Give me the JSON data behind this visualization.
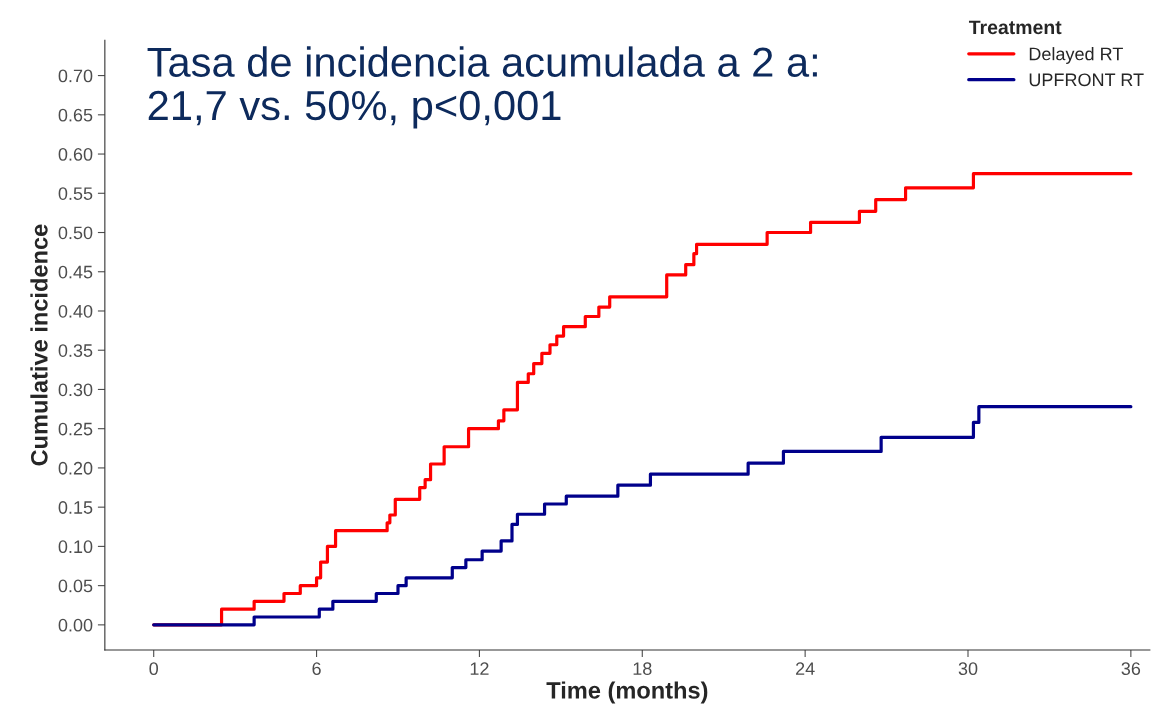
{
  "chart_data": {
    "type": "step",
    "title": "Tasa de incidencia acumulada a 2 a:\n21,7 vs. 50%, p<0,001",
    "xlabel": "Time (months)",
    "ylabel": "Cumulative incidence",
    "legend_title": "Treatment",
    "legend": "top right",
    "grid": false,
    "marker": "none",
    "line_style": "solid",
    "xlim": [
      -1.8,
      36.7
    ],
    "ylim": [
      -0.032,
      0.745
    ],
    "xticks": [
      0,
      6,
      12,
      18,
      24,
      30,
      36
    ],
    "yticks": [
      {
        "value": 0,
        "label": "0.00"
      },
      {
        "value": 0.05,
        "label": "0.05"
      },
      {
        "value": 0.1,
        "label": "0.10"
      },
      {
        "value": 0.15,
        "label": "0.15"
      },
      {
        "value": 0.2,
        "label": "0.20"
      },
      {
        "value": 0.25,
        "label": "0.25"
      },
      {
        "value": 0.3,
        "label": "0.30"
      },
      {
        "value": 0.35,
        "label": "0.35"
      },
      {
        "value": 0.4,
        "label": "0.40"
      },
      {
        "value": 0.45,
        "label": "0.45"
      },
      {
        "value": 0.5,
        "label": "0.50"
      },
      {
        "value": 0.55,
        "label": "0.55"
      },
      {
        "value": 0.6,
        "label": "0.60"
      },
      {
        "value": 0.65,
        "label": "0.65"
      },
      {
        "value": 0.7,
        "label": "0.70"
      }
    ],
    "series": [
      {
        "name": "Delayed RT",
        "color": "#ff0000",
        "x": [
          0,
          2.5,
          3.7,
          4.8,
          5.4,
          6.0,
          6.15,
          6.4,
          6.7,
          8.6,
          8.7,
          8.9,
          9.8,
          10.0,
          10.2,
          10.7,
          11.6,
          12.7,
          12.9,
          13.4,
          13.8,
          14.0,
          14.3,
          14.6,
          14.85,
          15.1,
          15.9,
          16.4,
          16.8,
          18.9,
          19.6,
          19.9,
          20.0,
          22.6,
          24.2,
          26.0,
          26.6,
          27.7,
          30.2,
          36
        ],
        "values": [
          0,
          0.02,
          0.03,
          0.04,
          0.05,
          0.06,
          0.08,
          0.1,
          0.12,
          0.13,
          0.14,
          0.16,
          0.175,
          0.185,
          0.205,
          0.227,
          0.25,
          0.26,
          0.274,
          0.309,
          0.32,
          0.333,
          0.346,
          0.357,
          0.368,
          0.38,
          0.393,
          0.405,
          0.418,
          0.446,
          0.459,
          0.473,
          0.485,
          0.5,
          0.513,
          0.527,
          0.542,
          0.557,
          0.575,
          0.575
        ]
      },
      {
        "name": "UPFRONT RT",
        "color": "#00008b",
        "x": [
          0,
          3.7,
          6.1,
          6.6,
          8.2,
          9.0,
          9.3,
          11.0,
          11.5,
          12.1,
          12.8,
          13.2,
          13.4,
          14.4,
          15.2,
          17.1,
          18.3,
          21.9,
          23.2,
          26.8,
          30.2,
          30.4,
          36
        ],
        "values": [
          0,
          0.01,
          0.02,
          0.03,
          0.04,
          0.05,
          0.06,
          0.073,
          0.083,
          0.094,
          0.107,
          0.128,
          0.141,
          0.154,
          0.164,
          0.178,
          0.192,
          0.206,
          0.221,
          0.239,
          0.258,
          0.278,
          0.278
        ]
      }
    ]
  }
}
